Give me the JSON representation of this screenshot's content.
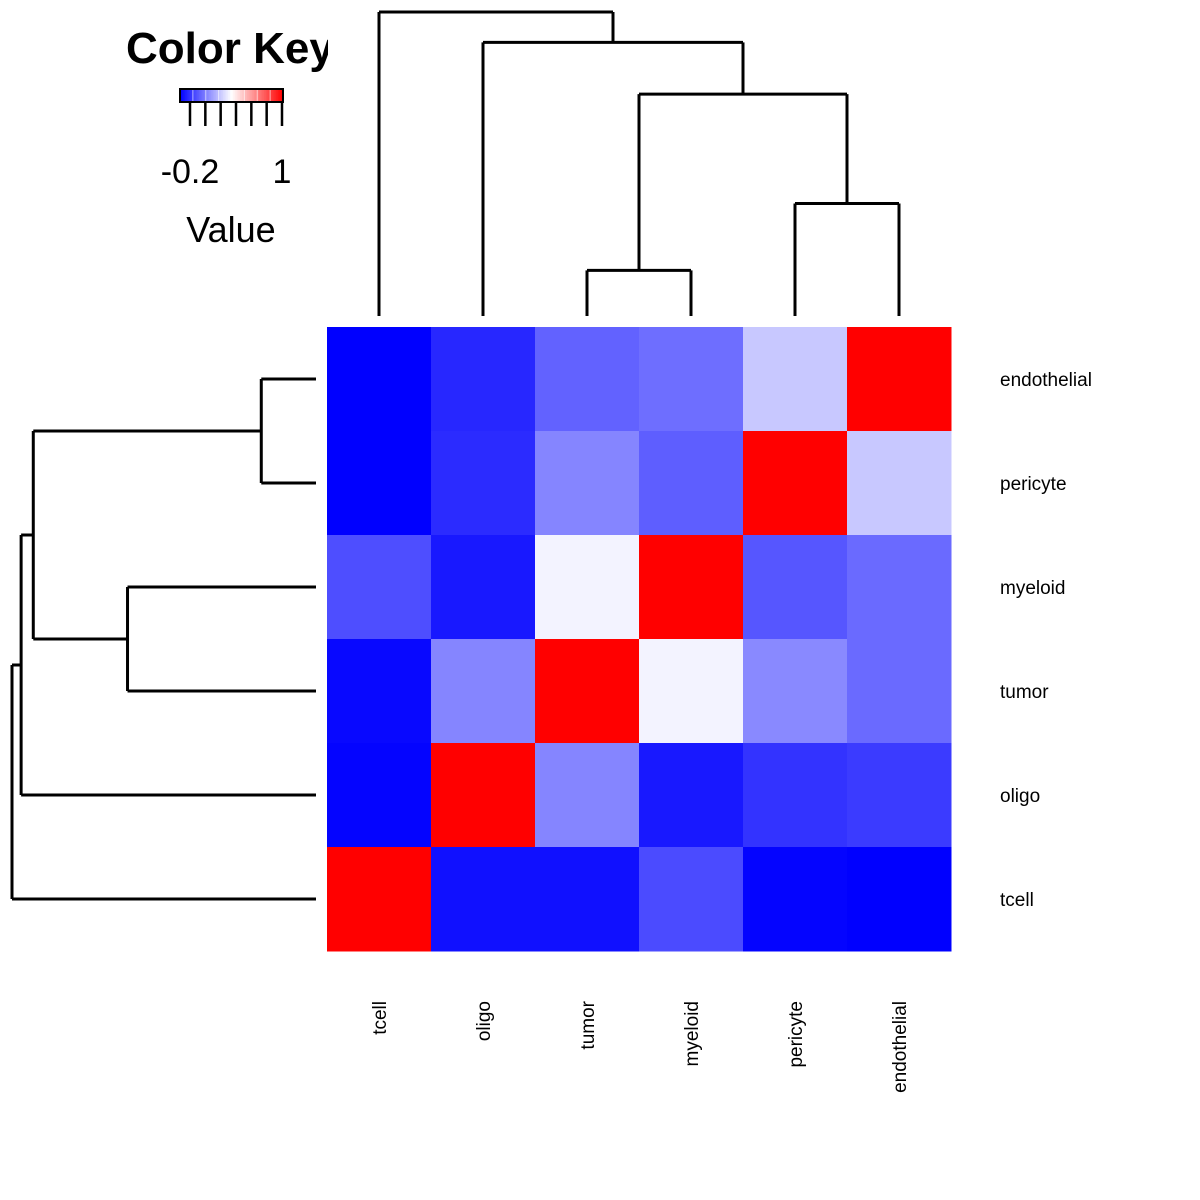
{
  "chart_data": {
    "type": "heatmap",
    "title": "",
    "xlabel": "",
    "ylabel": "",
    "columns": [
      "tcell",
      "oligo",
      "tumor",
      "myeloid",
      "pericyte",
      "endothelial"
    ],
    "rows_top_to_bottom": [
      "endothelial",
      "pericyte",
      "myeloid",
      "tumor",
      "oligo",
      "tcell"
    ],
    "values": [
      [
        -0.3,
        -0.2,
        -0.05,
        -0.02,
        0.21,
        1.0
      ],
      [
        -0.3,
        -0.19,
        0.04,
        -0.06,
        1.0,
        0.21
      ],
      [
        -0.1,
        -0.24,
        0.32,
        1.0,
        -0.08,
        -0.03
      ],
      [
        -0.28,
        0.04,
        1.0,
        0.32,
        0.05,
        -0.03
      ],
      [
        -0.29,
        1.0,
        0.04,
        -0.24,
        -0.17,
        -0.15
      ],
      [
        1.0,
        -0.26,
        -0.26,
        -0.11,
        -0.29,
        -0.3
      ]
    ],
    "color_scale": {
      "min": -0.3,
      "mid": 0.35,
      "max": 1.0,
      "low_color": "#0000ff",
      "mid_color": "#ffffff",
      "high_color": "#ff0000"
    },
    "color_key": {
      "title": "Color Key",
      "tick_labels": [
        "-0.2",
        "1"
      ],
      "xlabel": "Value"
    },
    "dendrogram": {
      "columns_merge_heights": [
        0.15,
        0.37,
        0.73,
        0.9,
        1.0
      ],
      "rows_merge_heights": [
        0.18,
        0.62,
        0.93,
        0.97,
        1.0
      ]
    }
  }
}
